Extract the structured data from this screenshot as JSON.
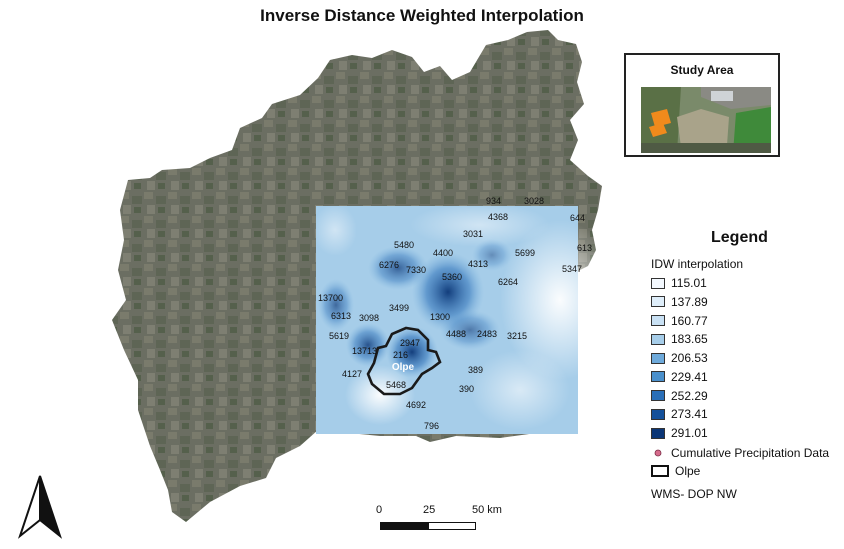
{
  "title": "Inverse Distance Weighted Interpolation",
  "inset": {
    "title": "Study Area"
  },
  "legend": {
    "title": "Legend",
    "subtitle": "IDW  interpolation",
    "classes": [
      {
        "label": "115.01",
        "color": "#f4f9ff"
      },
      {
        "label": "137.89",
        "color": "#dfeefa"
      },
      {
        "label": "160.77",
        "color": "#c9e1f4"
      },
      {
        "label": "183.65",
        "color": "#a6cde9"
      },
      {
        "label": "206.53",
        "color": "#6eaadb"
      },
      {
        "label": "229.41",
        "color": "#4a90cc"
      },
      {
        "label": "252.29",
        "color": "#2a6fb8"
      },
      {
        "label": "273.41",
        "color": "#14509a"
      },
      {
        "label": "291.01",
        "color": "#0b3676"
      }
    ],
    "point_label": "Cumulative Precipitation Data",
    "point_color": "#d66b8c",
    "boundary_label": "Olpe",
    "basemap_label": "WMS- DOP NW"
  },
  "scale": {
    "labels": [
      "0",
      "25",
      "50 km"
    ]
  },
  "olpe_label": "Olpe",
  "stations": [
    "934",
    "3028",
    "4368",
    "644",
    "3031",
    "613",
    "5480",
    "4400",
    "5699",
    "6276",
    "7330",
    "4313",
    "5347",
    "5360",
    "6264",
    "13700",
    "3499",
    "6313",
    "3098",
    "1300",
    "5619",
    "2947",
    "4488",
    "2483",
    "3215",
    "13713",
    "216",
    "389",
    "4127",
    "5468",
    "390",
    "4692",
    "796"
  ]
}
